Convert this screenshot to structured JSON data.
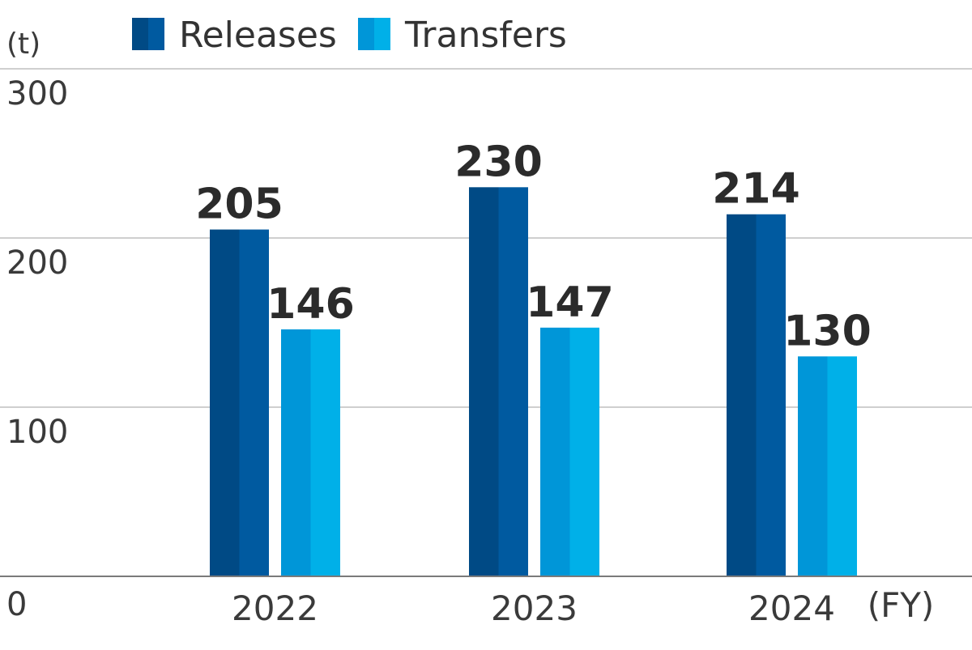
{
  "chart_data": {
    "type": "bar",
    "categories": [
      "2022",
      "2023",
      "2024"
    ],
    "series": [
      {
        "name": "Releases",
        "values": [
          205,
          230,
          214
        ],
        "color": "#005aa0",
        "shade": "#004a85"
      },
      {
        "name": "Transfers",
        "values": [
          146,
          147,
          130
        ],
        "color": "#00b0e8",
        "shade": "#0096d8"
      }
    ],
    "ylabel": "(t)",
    "xlabel": "(FY)",
    "ylim": [
      0,
      300
    ],
    "yticks": [
      0,
      100,
      200,
      300
    ],
    "grid": true,
    "legend_position": "top"
  }
}
